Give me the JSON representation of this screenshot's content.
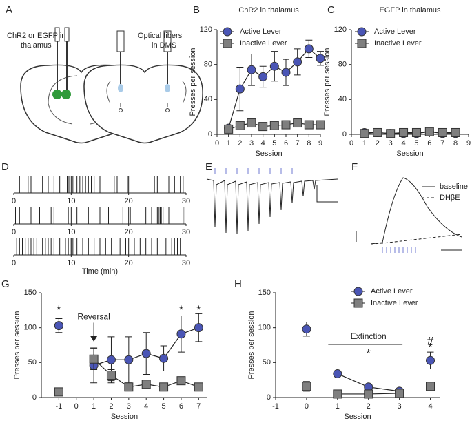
{
  "panel_labels": [
    "A",
    "B",
    "C",
    "D",
    "E",
    "F",
    "G",
    "H"
  ],
  "diagram": {
    "left_label": [
      "ChR2 or EGFP in",
      "thalamus"
    ],
    "right_label": [
      "Optical fibers",
      "in DMS"
    ]
  },
  "panel_f": {
    "legend": [
      "baseline",
      "DHβE"
    ]
  },
  "chart_data": [
    {
      "type": "line",
      "title": "ChR2 in thalamus",
      "xlabel": "Session",
      "ylabel": "Presses per session",
      "x": [
        1,
        2,
        3,
        4,
        5,
        6,
        7,
        8,
        9
      ],
      "xlim": [
        0,
        9
      ],
      "xticks": [
        0,
        1,
        2,
        3,
        4,
        5,
        6,
        7,
        8,
        9
      ],
      "ylim": [
        0,
        120
      ],
      "yticks": [
        0,
        40,
        80,
        120
      ],
      "legend": "upper left",
      "connect": [
        1,
        9
      ],
      "series": [
        {
          "name": "Active Lever",
          "color": "#4a55b5",
          "marker": "circle",
          "values": [
            7,
            52,
            74,
            66,
            78,
            71,
            83,
            98,
            87
          ],
          "errors": [
            3,
            25,
            18,
            12,
            17,
            15,
            15,
            10,
            8
          ]
        },
        {
          "name": "Inactive Lever",
          "color": "#7f7f7f",
          "marker": "square",
          "values": [
            6,
            10,
            13,
            9,
            10,
            11,
            13,
            11,
            11
          ],
          "errors": [
            2,
            3,
            3,
            2,
            2,
            2,
            3,
            2,
            2
          ]
        }
      ]
    },
    {
      "type": "line",
      "title": "EGFP in thalamus",
      "xlabel": "Session",
      "ylabel": "Presses per session",
      "x": [
        1,
        2,
        3,
        4,
        5,
        6,
        7,
        8
      ],
      "xlim": [
        0,
        9
      ],
      "xticks": [
        0,
        1,
        2,
        3,
        4,
        5,
        6,
        7,
        8,
        9
      ],
      "ylim": [
        0,
        120
      ],
      "yticks": [
        0,
        40,
        80,
        120
      ],
      "legend": "upper left",
      "connect": [
        1,
        8
      ],
      "series": [
        {
          "name": "Active Lever",
          "color": "#4a55b5",
          "marker": "circle",
          "values": [
            2,
            2,
            1,
            1,
            1,
            3,
            1,
            1
          ],
          "errors": [
            1,
            1,
            1,
            1,
            1,
            2,
            1,
            1
          ]
        },
        {
          "name": "Inactive Lever",
          "color": "#7f7f7f",
          "marker": "square",
          "values": [
            1,
            2,
            1,
            2,
            2,
            3,
            2,
            2
          ],
          "errors": [
            1,
            1,
            1,
            1,
            1,
            3,
            1,
            1
          ]
        }
      ]
    },
    {
      "type": "raster",
      "xlabel": "Time (min)",
      "xlim": [
        0,
        30
      ],
      "xticks": [
        0,
        10,
        20,
        30
      ],
      "series": [
        {
          "values": [
            1,
            2.5,
            3,
            5,
            6,
            7,
            7.5,
            8,
            9.3,
            9.6,
            10,
            10.3,
            11,
            11.5,
            12,
            12.5,
            13,
            13.5,
            14,
            15,
            17.5,
            18,
            19.8,
            20,
            24.5,
            25,
            27,
            28,
            29,
            29.5
          ]
        },
        {
          "values": [
            0.3,
            1,
            3,
            4.5,
            6.5,
            7,
            9.5,
            10,
            11,
            13,
            15,
            16.5,
            19,
            20,
            20.3,
            23,
            24,
            25,
            25.3,
            25.5,
            25.7,
            26,
            27,
            29.5,
            29.8
          ]
        },
        {
          "values": [
            0.5,
            1,
            1.5,
            2,
            2.5,
            3,
            3.5,
            4,
            5,
            5.5,
            6,
            6.5,
            7,
            7.5,
            8,
            9,
            9.5,
            9.8,
            10,
            10.3,
            11,
            12,
            13,
            14,
            15,
            16,
            17,
            18.5,
            19.5,
            20,
            21,
            22,
            23,
            24,
            25,
            26.5,
            27.5,
            28,
            28.5,
            29
          ]
        }
      ]
    },
    {
      "type": "line",
      "xlabel": "Session",
      "ylabel": "Presses per session",
      "x": [
        -1,
        1,
        2,
        3,
        4,
        5,
        6,
        7
      ],
      "xlim": [
        -2,
        7.5
      ],
      "xticks": [
        -1,
        0,
        1,
        2,
        3,
        4,
        5,
        6,
        7
      ],
      "ylim": [
        0,
        150
      ],
      "yticks": [
        0,
        50,
        100,
        150
      ],
      "connect": [
        1,
        7
      ],
      "series": [
        {
          "name": "Active Lever",
          "color": "#4a55b5",
          "marker": "circle",
          "values": [
            103,
            46,
            54,
            54,
            63,
            56,
            91,
            100
          ],
          "errors": [
            10,
            25,
            33,
            33,
            30,
            18,
            26,
            20
          ]
        },
        {
          "name": "Inactive Lever",
          "color": "#7f7f7f",
          "marker": "square",
          "values": [
            8,
            55,
            32,
            15,
            19,
            15,
            24,
            15
          ],
          "errors": [
            2,
            15,
            8,
            3,
            3,
            3,
            4,
            3
          ]
        }
      ],
      "annotations": [
        {
          "text": "*",
          "x": -1,
          "y": 125
        },
        {
          "text": "*",
          "x": 6,
          "y": 125
        },
        {
          "text": "*",
          "x": 7,
          "y": 125
        },
        {
          "text": "Reversal",
          "x": 1,
          "y": 115,
          "arrow_to": 80
        }
      ]
    },
    {
      "type": "line",
      "xlabel": "Session",
      "ylabel": "Presses per session",
      "x": [
        0,
        1,
        2,
        3,
        4
      ],
      "xlim": [
        -1,
        4.3
      ],
      "xticks": [
        -1,
        0,
        1,
        2,
        3,
        4
      ],
      "ylim": [
        0,
        150
      ],
      "yticks": [
        0,
        50,
        100,
        150
      ],
      "legend": "upper right",
      "connect": [
        1,
        3
      ],
      "series": [
        {
          "name": "Active Lever",
          "color": "#4a55b5",
          "marker": "circle",
          "values": [
            98,
            34,
            15,
            9,
            53
          ],
          "errors": [
            10,
            2,
            2,
            2,
            12
          ]
        },
        {
          "name": "Inactive Lever",
          "color": "#7f7f7f",
          "marker": "square",
          "values": [
            16,
            5,
            5,
            6,
            16
          ],
          "errors": [
            7,
            2,
            2,
            2,
            6
          ]
        }
      ],
      "annotations": [
        {
          "text": "Extinction",
          "x": 2,
          "y": 87,
          "line": [
            0.7,
            3.1,
            76
          ]
        },
        {
          "text": "*",
          "x": 2,
          "y": 62
        },
        {
          "text": "#",
          "x": 4,
          "y": 80
        },
        {
          "text": "*",
          "x": 4,
          "y": 71
        }
      ]
    }
  ]
}
